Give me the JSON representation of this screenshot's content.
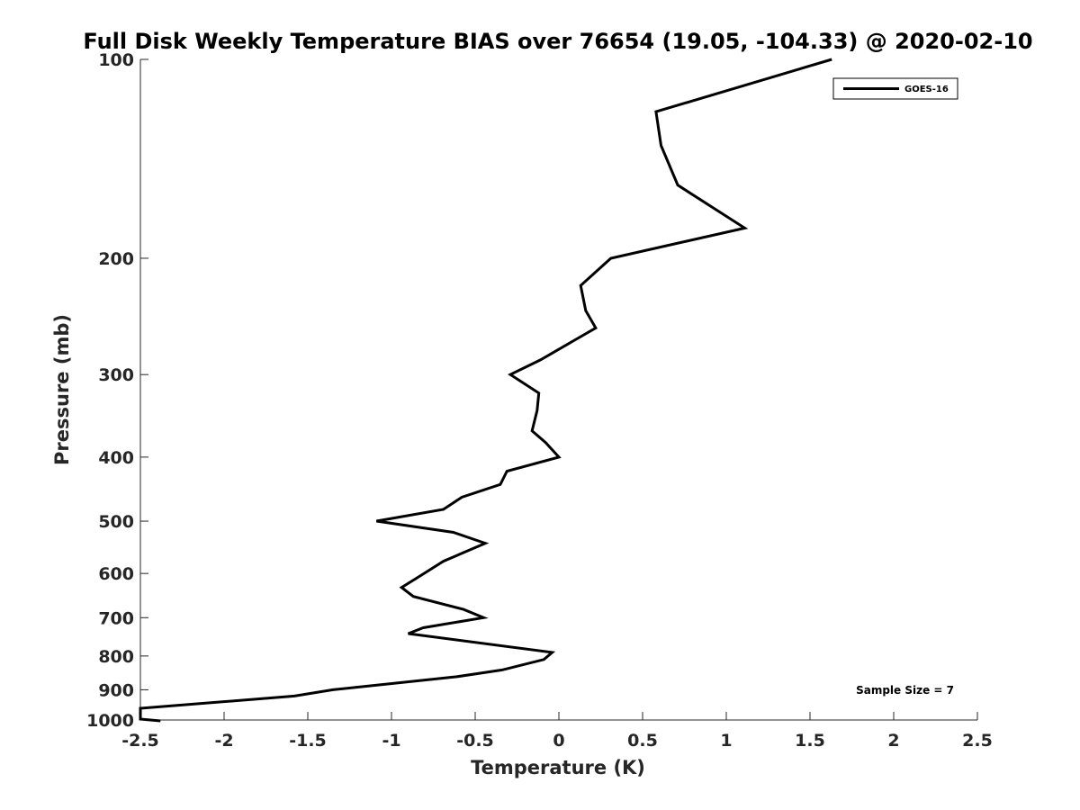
{
  "chart_data": {
    "type": "line",
    "title": "Full Disk Weekly Temperature BIAS over 76654 (19.05, -104.33) @ 2020-02-10",
    "xlabel": "Temperature (K)",
    "ylabel": "Pressure (mb)",
    "xlim": [
      -2.5,
      2.5
    ],
    "ylim": [
      100,
      1000
    ],
    "yscale": "log",
    "yreversed": true,
    "grid": false,
    "legend_position": "top-right",
    "xticks": [
      "-2.5",
      "-2",
      "-1.5",
      "-1",
      "-0.5",
      "0",
      "0.5",
      "1",
      "1.5",
      "2",
      "2.5"
    ],
    "xtick_values": [
      -2.5,
      -2,
      -1.5,
      -1,
      -0.5,
      0,
      0.5,
      1,
      1.5,
      2,
      2.5
    ],
    "yticks": [
      "100",
      "200",
      "300",
      "400",
      "500",
      "600",
      "700",
      "800",
      "900",
      "1000"
    ],
    "ytick_values": [
      100,
      200,
      300,
      400,
      500,
      600,
      700,
      800,
      900,
      1000
    ],
    "series": [
      {
        "name": "GOES-16",
        "color": "#000000",
        "x": [
          1.63,
          0.58,
          0.61,
          0.71,
          1.11,
          0.31,
          0.13,
          0.16,
          0.22,
          -0.11,
          -0.29,
          -0.12,
          -0.13,
          -0.16,
          -0.08,
          0.0,
          -0.31,
          -0.35,
          -0.58,
          -0.69,
          -1.09,
          -0.63,
          -0.44,
          -0.69,
          -0.85,
          -0.94,
          -0.87,
          -0.57,
          -0.45,
          -0.81,
          -0.9,
          -0.04,
          -0.09,
          -0.34,
          -0.61,
          -1.35,
          -1.58,
          -2.5,
          -2.5,
          -2.38
        ],
        "y": [
          100,
          120,
          135,
          155,
          180,
          200,
          220,
          240,
          255,
          285,
          300,
          320,
          340,
          365,
          380,
          400,
          420,
          440,
          460,
          480,
          500,
          520,
          540,
          575,
          610,
          630,
          650,
          680,
          700,
          725,
          740,
          790,
          810,
          840,
          860,
          900,
          920,
          960,
          997,
          1003
        ]
      }
    ],
    "annotations": [
      "Sample Size = 7"
    ]
  }
}
